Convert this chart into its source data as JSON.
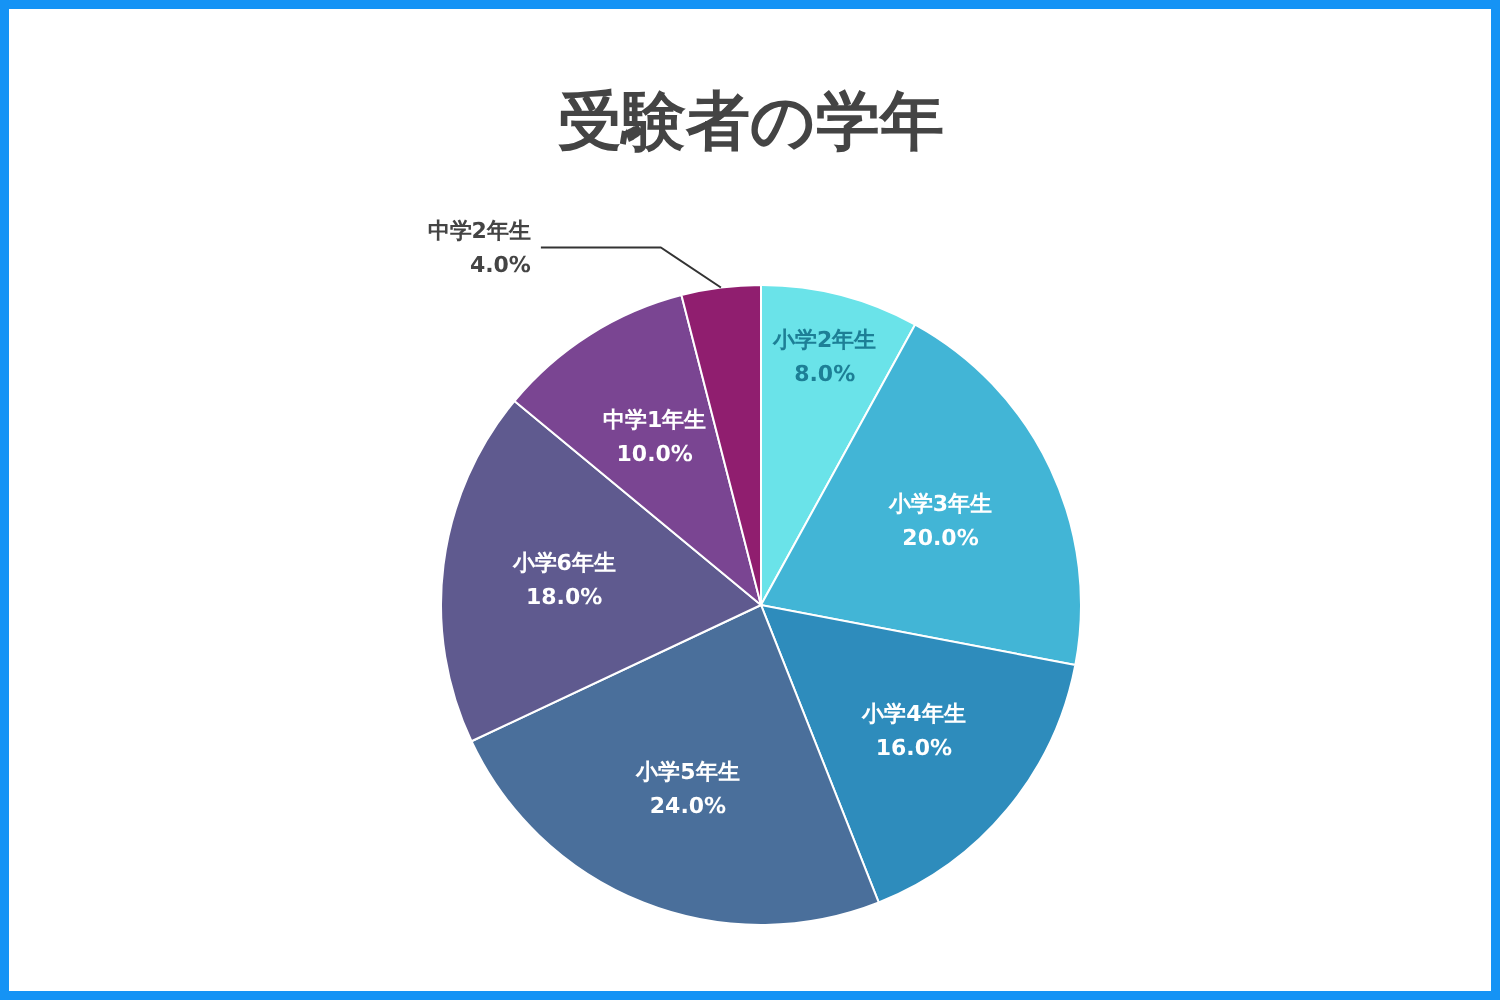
{
  "chart_data": {
    "type": "pie",
    "title": "受験者の学年",
    "categories": [
      "小学2年生",
      "小学3年生",
      "小学4年生",
      "小学5年生",
      "小学6年生",
      "中学1年生",
      "中学2年生"
    ],
    "values": [
      8.0,
      20.0,
      16.0,
      24.0,
      18.0,
      10.0,
      4.0
    ],
    "colors": [
      "#6ae3e9",
      "#42b5d6",
      "#2e8cbc",
      "#4a6f9b",
      "#5f5a8f",
      "#7a4592",
      "#901e6f"
    ],
    "value_labels": [
      "8.0%",
      "20.0%",
      "16.0%",
      "24.0%",
      "18.0%",
      "10.0%",
      "4.0%"
    ]
  }
}
